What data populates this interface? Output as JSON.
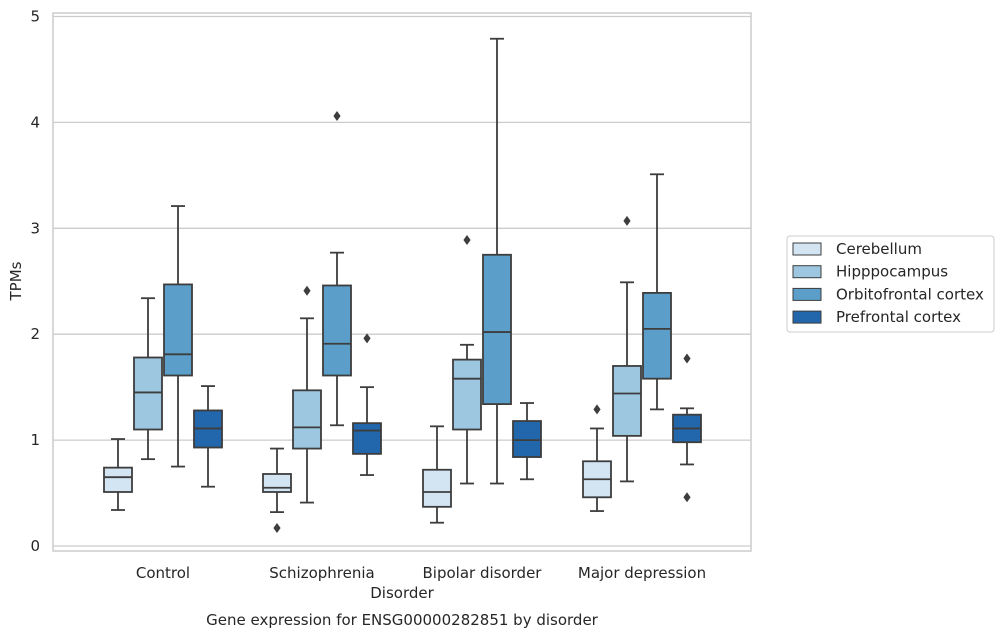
{
  "chart_data": {
    "type": "box",
    "title": "",
    "caption": "Gene expression for ENSG00000282851 by disorder",
    "xlabel": "Disorder",
    "ylabel": "TPMs",
    "ylim": [
      -0.05,
      5.03
    ],
    "yticks": [
      0,
      1,
      2,
      3,
      4,
      5
    ],
    "grid": true,
    "legend_position": "right",
    "categories": [
      "Control",
      "Schizophrenia",
      "Bipolar disorder",
      "Major depression"
    ],
    "series": [
      {
        "name": "Cerebellum",
        "color": "#d3e4f3",
        "boxes": [
          {
            "whisker_low": 0.34,
            "q1": 0.51,
            "median": 0.65,
            "q3": 0.74,
            "whisker_high": 1.01,
            "outliers": []
          },
          {
            "whisker_low": 0.32,
            "q1": 0.51,
            "median": 0.55,
            "q3": 0.68,
            "whisker_high": 0.92,
            "outliers": [
              0.17
            ]
          },
          {
            "whisker_low": 0.22,
            "q1": 0.37,
            "median": 0.51,
            "q3": 0.72,
            "whisker_high": 1.13,
            "outliers": []
          },
          {
            "whisker_low": 0.33,
            "q1": 0.46,
            "median": 0.63,
            "q3": 0.8,
            "whisker_high": 1.11,
            "outliers": [
              1.29
            ]
          }
        ]
      },
      {
        "name": "Hipppocampus",
        "color": "#9dc7e0",
        "boxes": [
          {
            "whisker_low": 0.82,
            "q1": 1.1,
            "median": 1.45,
            "q3": 1.78,
            "whisker_high": 2.34,
            "outliers": []
          },
          {
            "whisker_low": 0.41,
            "q1": 0.92,
            "median": 1.12,
            "q3": 1.47,
            "whisker_high": 2.15,
            "outliers": [
              2.41
            ]
          },
          {
            "whisker_low": 0.59,
            "q1": 1.1,
            "median": 1.58,
            "q3": 1.76,
            "whisker_high": 1.9,
            "outliers": [
              2.89
            ]
          },
          {
            "whisker_low": 0.61,
            "q1": 1.04,
            "median": 1.44,
            "q3": 1.7,
            "whisker_high": 2.49,
            "outliers": [
              3.07
            ]
          }
        ]
      },
      {
        "name": "Orbitofrontal cortex",
        "color": "#5a9ec9",
        "boxes": [
          {
            "whisker_low": 0.75,
            "q1": 1.61,
            "median": 1.81,
            "q3": 2.47,
            "whisker_high": 3.21,
            "outliers": []
          },
          {
            "whisker_low": 1.14,
            "q1": 1.61,
            "median": 1.91,
            "q3": 2.46,
            "whisker_high": 2.77,
            "outliers": [
              4.06
            ]
          },
          {
            "whisker_low": 0.59,
            "q1": 1.34,
            "median": 2.02,
            "q3": 2.75,
            "whisker_high": 4.79,
            "outliers": []
          },
          {
            "whisker_low": 1.29,
            "q1": 1.58,
            "median": 2.05,
            "q3": 2.39,
            "whisker_high": 3.51,
            "outliers": []
          }
        ]
      },
      {
        "name": "Prefrontal cortex",
        "color": "#2266ac",
        "boxes": [
          {
            "whisker_low": 0.56,
            "q1": 0.93,
            "median": 1.11,
            "q3": 1.28,
            "whisker_high": 1.51,
            "outliers": []
          },
          {
            "whisker_low": 0.67,
            "q1": 0.87,
            "median": 1.09,
            "q3": 1.16,
            "whisker_high": 1.5,
            "outliers": [
              1.96
            ]
          },
          {
            "whisker_low": 0.63,
            "q1": 0.84,
            "median": 1.0,
            "q3": 1.18,
            "whisker_high": 1.35,
            "outliers": []
          },
          {
            "whisker_low": 0.77,
            "q1": 0.98,
            "median": 1.11,
            "q3": 1.24,
            "whisker_high": 1.3,
            "outliers": [
              0.46,
              1.77
            ]
          }
        ]
      }
    ]
  }
}
